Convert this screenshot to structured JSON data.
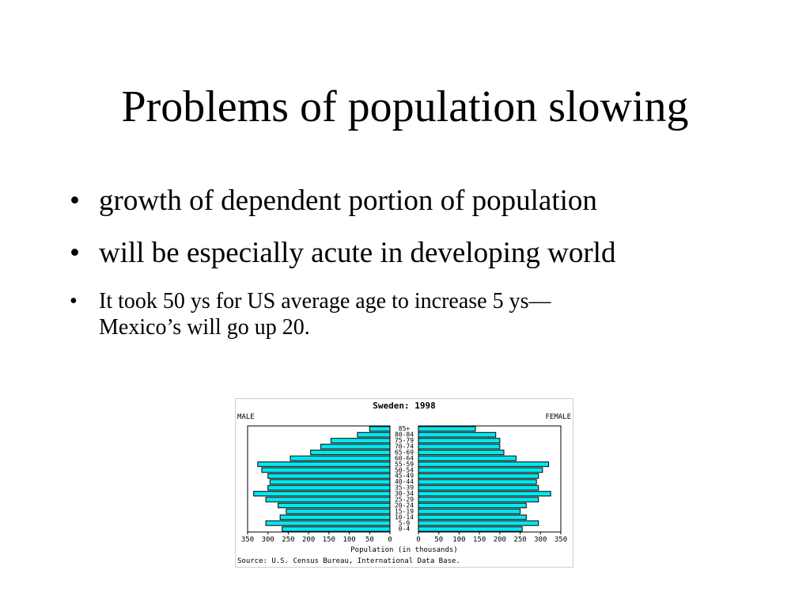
{
  "slide": {
    "title": "Problems of population slowing",
    "bullets": [
      {
        "text": "growth of dependent portion of population",
        "size": "large"
      },
      {
        "text": "will be especially acute in developing world",
        "size": "large"
      },
      {
        "text": "It took 50 ys for US average age to increase 5 ys—\nMexico’s will go up 20.",
        "size": "small"
      }
    ],
    "bullet_glyph": "•"
  },
  "chart_data": {
    "type": "bar",
    "subtype": "population-pyramid",
    "title": "Sweden: 1998",
    "left_label": "MALE",
    "right_label": "FEMALE",
    "xlabel": "Population (in thousands)",
    "source": "Source: U.S. Census Bureau, International Data Base.",
    "categories": [
      "0-4",
      "5-9",
      "10-14",
      "15-19",
      "20-24",
      "25-29",
      "30-34",
      "35-39",
      "40-44",
      "45-49",
      "50-54",
      "55-59",
      "60-64",
      "65-69",
      "70-74",
      "75-79",
      "80-84",
      "85+"
    ],
    "series": [
      {
        "name": "MALE",
        "values": [
          265,
          305,
          270,
          255,
          275,
          305,
          335,
          300,
          295,
          300,
          315,
          325,
          245,
          195,
          170,
          145,
          80,
          50
        ]
      },
      {
        "name": "FEMALE",
        "values": [
          255,
          295,
          265,
          250,
          265,
          295,
          325,
          295,
          290,
          295,
          305,
          320,
          240,
          210,
          200,
          200,
          190,
          140
        ]
      }
    ],
    "xlim": [
      0,
      350
    ],
    "xticks": [
      "350",
      "300",
      "250",
      "200",
      "150",
      "100",
      "50",
      "0",
      "0",
      "50",
      "100",
      "150",
      "200",
      "250",
      "300",
      "350"
    ],
    "bar_color": "#00e8ee",
    "bar_stroke": "#000000",
    "grid": false
  }
}
